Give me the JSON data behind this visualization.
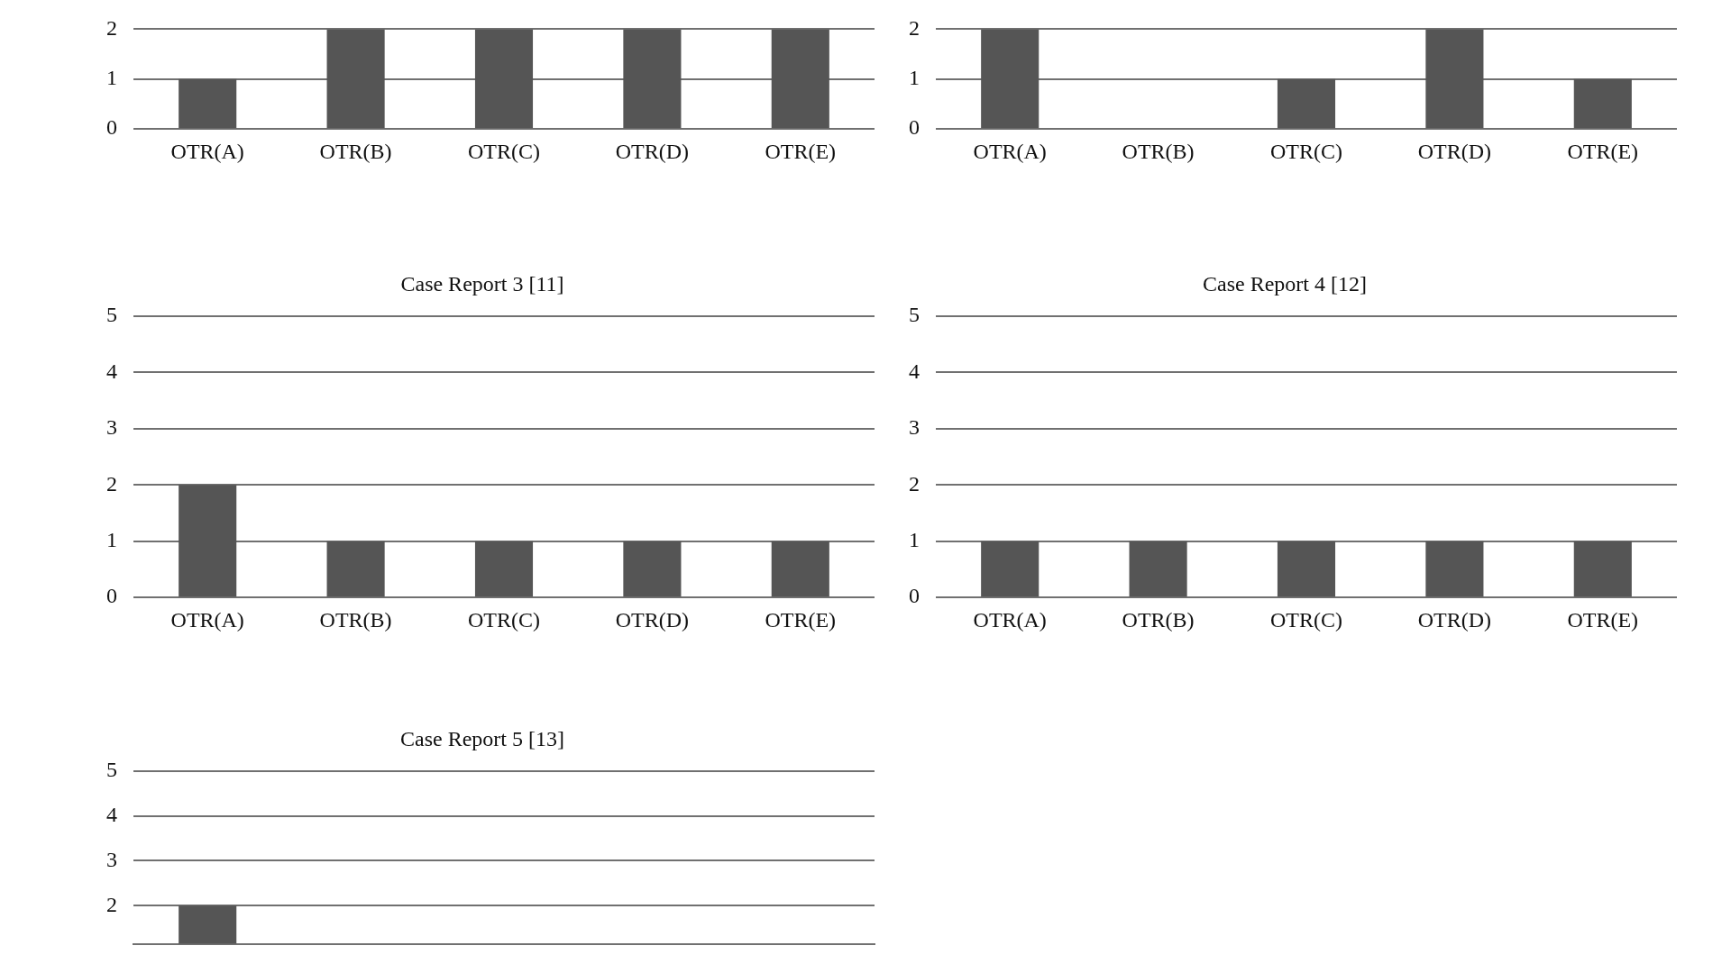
{
  "chart_data": [
    {
      "type": "bar",
      "categories": [
        "OTR(A)",
        "OTR(B)",
        "OTR(C)",
        "OTR(D)",
        "OTR(E)"
      ],
      "values": [
        1,
        2,
        2,
        2,
        2
      ],
      "color": "#555555",
      "ylim": [
        0,
        2
      ],
      "yticks": [
        0,
        1,
        2
      ],
      "grid": "y"
    },
    {
      "type": "bar",
      "categories": [
        "OTR(A)",
        "OTR(B)",
        "OTR(C)",
        "OTR(D)",
        "OTR(E)"
      ],
      "values": [
        2,
        0,
        1,
        2,
        1
      ],
      "color": "#555555",
      "ylim": [
        0,
        2
      ],
      "yticks": [
        0,
        1,
        2
      ],
      "grid": "y"
    },
    {
      "type": "bar",
      "title": "Case Report 3 [11]",
      "categories": [
        "OTR(A)",
        "OTR(B)",
        "OTR(C)",
        "OTR(D)",
        "OTR(E)"
      ],
      "values": [
        2,
        1,
        1,
        1,
        1
      ],
      "color": "#555555",
      "ylim": [
        0,
        5
      ],
      "yticks": [
        0,
        1,
        2,
        3,
        4,
        5
      ],
      "grid": "y"
    },
    {
      "type": "bar",
      "title": "Case Report 4 [12]",
      "categories": [
        "OTR(A)",
        "OTR(B)",
        "OTR(C)",
        "OTR(D)",
        "OTR(E)"
      ],
      "values": [
        1,
        1,
        1,
        1,
        1
      ],
      "color": "#555555",
      "ylim": [
        0,
        5
      ],
      "yticks": [
        0,
        1,
        2,
        3,
        4,
        5
      ],
      "grid": "y"
    },
    {
      "type": "bar",
      "title": "Case Report 5 [13]",
      "categories": [
        null,
        null,
        null,
        null,
        null
      ],
      "values": [
        2,
        null,
        null,
        null,
        null
      ],
      "color": "#555555",
      "ylim": [
        1.15,
        5
      ],
      "yticks": [
        2,
        3,
        4,
        5
      ],
      "grid": "y",
      "tick_labels": "y"
    }
  ]
}
